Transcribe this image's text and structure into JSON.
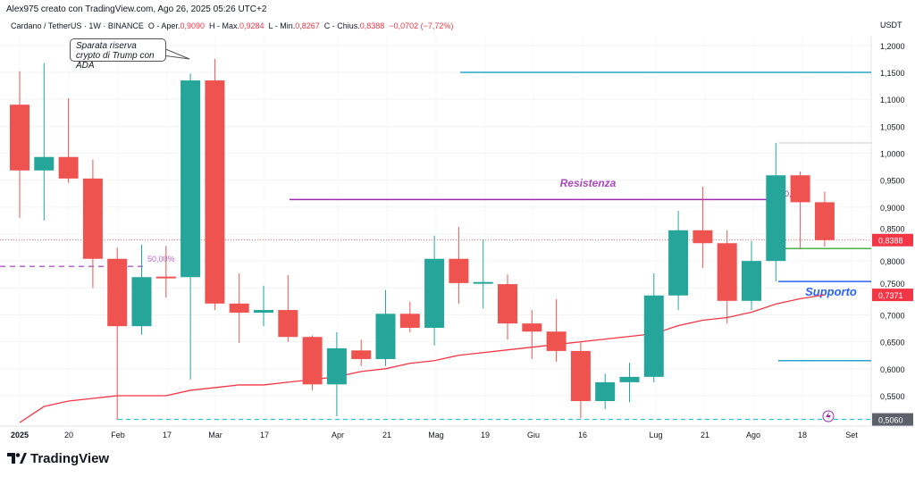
{
  "header": {
    "credit": "Alex975 creato con TradingView.com, Ago 26, 2025 05:26 UTC+2"
  },
  "legend": {
    "symbol": "Cardano / TetherUS · 1W · BINANCE",
    "open_label": "O - Aper.",
    "open": "0,9090",
    "high_label": "H - Max.",
    "high": "0,9284",
    "low_label": "L - Min.",
    "low": "0,8267",
    "close_label": "C - Chius.",
    "close": "0,8388",
    "change": "−0,0702 (−7,72%)"
  },
  "currency": "USDT",
  "annotations": {
    "callout": "Sparata riserva crypto di Trump con ADA",
    "resistance": "Resistenza",
    "support": "Supporto",
    "fib": "50,00%",
    "fib_right": "0,"
  },
  "price_axis": [
    "1,2000",
    "1,1500",
    "1,1000",
    "1,0500",
    "1,0000",
    "0,9500",
    "0,9000",
    "0,8500",
    "0,8000",
    "0,7500",
    "0,7000",
    "0,6500",
    "0,6000",
    "0,5500"
  ],
  "price_tags": [
    {
      "text": "0,8388",
      "value": 0.8388,
      "color": "#f23645"
    },
    {
      "text": "0,7371",
      "value": 0.7371,
      "color": "#f23645"
    },
    {
      "text": "0,5060",
      "value": 0.506,
      "color": "#5d606b"
    }
  ],
  "time_axis": [
    "2025",
    "20",
    "Feb",
    "17",
    "Mar",
    "17",
    "Apr",
    "21",
    "Mag",
    "19",
    "Giu",
    "16",
    "Lug",
    "21",
    "Ago",
    "18",
    "Set"
  ],
  "brand": "TradingView",
  "colors": {
    "up": "#26a69a",
    "down": "#ef5350",
    "ma": "#f23645",
    "resistance": "#9c27b0",
    "support": "#2962ff"
  },
  "candles": [
    [
      1.09,
      1.152,
      0.88,
      0.968
    ],
    [
      0.968,
      1.167,
      0.875,
      0.993
    ],
    [
      0.993,
      1.102,
      0.945,
      0.953
    ],
    [
      0.953,
      0.988,
      0.75,
      0.804
    ],
    [
      0.804,
      0.825,
      0.505,
      0.679
    ],
    [
      0.679,
      0.83,
      0.663,
      0.77
    ],
    [
      0.771,
      0.828,
      0.732,
      0.768
    ],
    [
      0.77,
      1.148,
      0.58,
      1.135
    ],
    [
      1.135,
      1.175,
      0.709,
      0.721
    ],
    [
      0.721,
      0.777,
      0.648,
      0.704
    ],
    [
      0.704,
      0.754,
      0.679,
      0.709
    ],
    [
      0.709,
      0.774,
      0.65,
      0.659
    ],
    [
      0.659,
      0.662,
      0.56,
      0.571
    ],
    [
      0.571,
      0.668,
      0.512,
      0.638
    ],
    [
      0.634,
      0.654,
      0.605,
      0.618
    ],
    [
      0.618,
      0.746,
      0.605,
      0.702
    ],
    [
      0.702,
      0.724,
      0.668,
      0.676
    ],
    [
      0.676,
      0.847,
      0.643,
      0.804
    ],
    [
      0.804,
      0.863,
      0.721,
      0.759
    ],
    [
      0.759,
      0.84,
      0.712,
      0.761
    ],
    [
      0.757,
      0.775,
      0.654,
      0.684
    ],
    [
      0.684,
      0.709,
      0.618,
      0.669
    ],
    [
      0.669,
      0.729,
      0.613,
      0.633
    ],
    [
      0.633,
      0.651,
      0.508,
      0.54
    ],
    [
      0.54,
      0.591,
      0.525,
      0.575
    ],
    [
      0.575,
      0.611,
      0.538,
      0.585
    ],
    [
      0.585,
      0.777,
      0.575,
      0.736
    ],
    [
      0.736,
      0.893,
      0.709,
      0.857
    ],
    [
      0.857,
      0.938,
      0.787,
      0.833
    ],
    [
      0.833,
      0.857,
      0.684,
      0.726
    ],
    [
      0.726,
      0.837,
      0.709,
      0.8
    ],
    [
      0.8,
      1.019,
      0.762,
      0.959
    ],
    [
      0.959,
      0.966,
      0.822,
      0.909
    ],
    [
      0.909,
      0.9284,
      0.8267,
      0.8388
    ]
  ],
  "ma": [
    0.5,
    0.53,
    0.54,
    0.545,
    0.55,
    0.55,
    0.55,
    0.56,
    0.565,
    0.57,
    0.57,
    0.575,
    0.58,
    0.585,
    0.595,
    0.6,
    0.61,
    0.615,
    0.625,
    0.63,
    0.635,
    0.64,
    0.645,
    0.65,
    0.655,
    0.66,
    0.665,
    0.68,
    0.69,
    0.695,
    0.705,
    0.72,
    0.73,
    0.737
  ]
}
